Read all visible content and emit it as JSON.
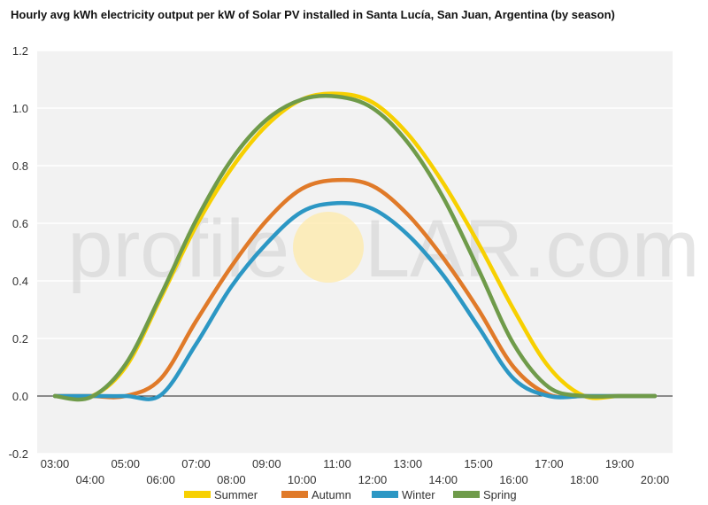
{
  "chart_data": {
    "type": "line",
    "title": "Hourly avg kWh electricity output per kW of Solar PV installed in Santa Lucía, San Juan, Argentina (by season)",
    "xlabel": "",
    "ylabel": "",
    "x": [
      "03:00",
      "04:00",
      "05:00",
      "06:00",
      "07:00",
      "08:00",
      "09:00",
      "10:00",
      "11:00",
      "12:00",
      "13:00",
      "14:00",
      "15:00",
      "16:00",
      "17:00",
      "18:00",
      "19:00",
      "20:00"
    ],
    "ylim": [
      -0.2,
      1.2
    ],
    "yticks": [
      -0.2,
      0.0,
      0.2,
      0.4,
      0.6,
      0.8,
      1.0,
      1.2
    ],
    "ytick_labels": [
      "-0.2",
      "0.0",
      "0.2",
      "0.4",
      "0.6",
      "0.8",
      "1.0",
      "1.2"
    ],
    "grid": true,
    "legend_position": "bottom",
    "series": [
      {
        "name": "Summer",
        "color": "#f7d000",
        "values": [
          0.0,
          -0.003,
          0.1,
          0.34,
          0.59,
          0.79,
          0.94,
          1.03,
          1.05,
          1.02,
          0.91,
          0.74,
          0.53,
          0.3,
          0.1,
          0.0,
          0.0,
          0.0
        ]
      },
      {
        "name": "Autumn",
        "color": "#e07a29",
        "values": [
          0.0,
          0.0,
          0.0,
          0.06,
          0.26,
          0.45,
          0.61,
          0.72,
          0.75,
          0.73,
          0.63,
          0.48,
          0.3,
          0.1,
          0.005,
          0.0,
          0.0,
          0.0
        ]
      },
      {
        "name": "Winter",
        "color": "#2c97c4",
        "values": [
          0.0,
          0.0,
          0.0,
          0.003,
          0.18,
          0.38,
          0.53,
          0.64,
          0.67,
          0.65,
          0.56,
          0.42,
          0.24,
          0.06,
          0.0,
          0.0,
          0.0,
          0.0
        ]
      },
      {
        "name": "Spring",
        "color": "#6f9b4a",
        "values": [
          0.0,
          -0.005,
          0.11,
          0.35,
          0.61,
          0.82,
          0.96,
          1.03,
          1.04,
          1.0,
          0.88,
          0.69,
          0.44,
          0.18,
          0.03,
          0.0,
          0.0,
          0.0
        ]
      }
    ]
  },
  "watermark": {
    "text_left": "profile",
    "text_right": "LAR.com",
    "sun_color": "#fde9a8"
  }
}
